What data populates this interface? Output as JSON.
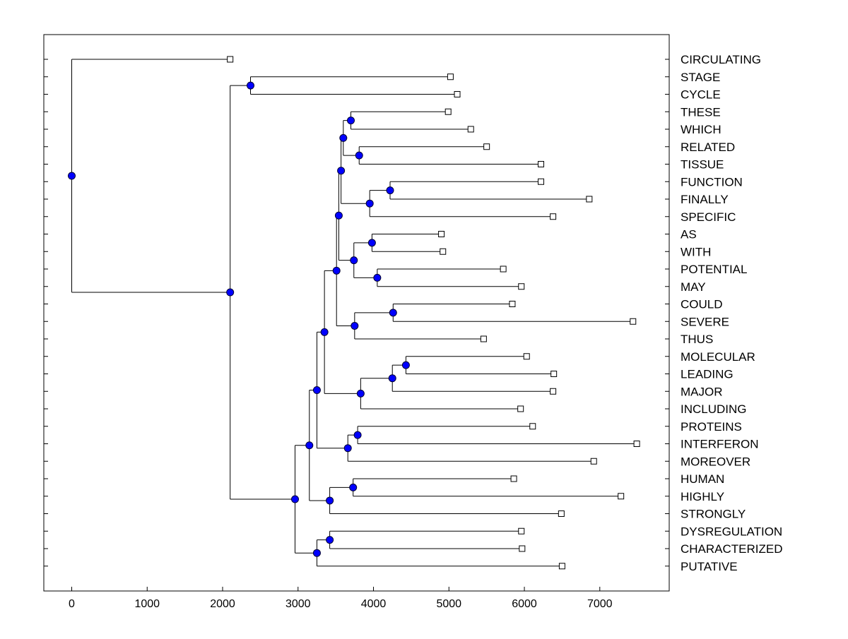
{
  "chart_data": {
    "type": "dendrogram",
    "xlim": [
      -370,
      7920
    ],
    "x_ticks": [
      0,
      1000,
      2000,
      3000,
      4000,
      5000,
      6000,
      7000
    ],
    "x_tick_labels": [
      "0",
      "1000",
      "2000",
      "3000",
      "4000",
      "5000",
      "6000",
      "7000"
    ],
    "title": "",
    "xlabel": "",
    "ylabel": "",
    "grid": false,
    "colors": {
      "node": "#0000ff",
      "line": "#000000",
      "leaf_marker": "#ffffff"
    },
    "leaves": [
      {
        "label": "CIRCULATING",
        "value": 2100
      },
      {
        "label": "STAGE",
        "value": 5020
      },
      {
        "label": "CYCLE",
        "value": 5110
      },
      {
        "label": "THESE",
        "value": 4990
      },
      {
        "label": "WHICH",
        "value": 5290
      },
      {
        "label": "RELATED",
        "value": 5500
      },
      {
        "label": "TISSUE",
        "value": 6220
      },
      {
        "label": "FUNCTION",
        "value": 6220
      },
      {
        "label": "FINALLY",
        "value": 6860
      },
      {
        "label": "SPECIFIC",
        "value": 6380
      },
      {
        "label": "AS",
        "value": 4900
      },
      {
        "label": "WITH",
        "value": 4920
      },
      {
        "label": "POTENTIAL",
        "value": 5720
      },
      {
        "label": "MAY",
        "value": 5960
      },
      {
        "label": "COULD",
        "value": 5840
      },
      {
        "label": "SEVERE",
        "value": 7440
      },
      {
        "label": "THUS",
        "value": 5460
      },
      {
        "label": "MOLECULAR",
        "value": 6030
      },
      {
        "label": "LEADING",
        "value": 6390
      },
      {
        "label": "MAJOR",
        "value": 6380
      },
      {
        "label": "INCLUDING",
        "value": 5950
      },
      {
        "label": "PROTEINS",
        "value": 6110
      },
      {
        "label": "INTERFERON",
        "value": 7490
      },
      {
        "label": "MOREOVER",
        "value": 6920
      },
      {
        "label": "HUMAN",
        "value": 5860
      },
      {
        "label": "HIGHLY",
        "value": 7280
      },
      {
        "label": "STRONGLY",
        "value": 6490
      },
      {
        "label": "DYSREGULATION",
        "value": 5960
      },
      {
        "label": "CHARACTERIZED",
        "value": 5970
      },
      {
        "label": "PUTATIVE",
        "value": 6500
      }
    ],
    "tree": {
      "h": 0,
      "c": [
        {
          "leaf": 0
        },
        {
          "h": 2100,
          "c": [
            {
              "h": 2370,
              "c": [
                {
                  "leaf": 1
                },
                {
                  "leaf": 2
                }
              ]
            },
            {
              "h": 2960,
              "c": [
                {
                  "h": 3150,
                  "c": [
                    {
                      "h": 3250,
                      "c": [
                        {
                          "h": 3350,
                          "c": [
                            {
                              "h": 3510,
                              "c": [
                                {
                                  "h": 3540,
                                  "c": [
                                    {
                                      "h": 3570,
                                      "c": [
                                        {
                                          "h": 3600,
                                          "c": [
                                            {
                                              "h": 3700,
                                              "c": [
                                                {
                                                  "leaf": 3
                                                },
                                                {
                                                  "leaf": 4
                                                }
                                              ]
                                            },
                                            {
                                              "h": 3810,
                                              "c": [
                                                {
                                                  "leaf": 5
                                                },
                                                {
                                                  "leaf": 6
                                                }
                                              ]
                                            }
                                          ]
                                        },
                                        {
                                          "h": 3950,
                                          "c": [
                                            {
                                              "h": 4220,
                                              "c": [
                                                {
                                                  "leaf": 7
                                                },
                                                {
                                                  "leaf": 8
                                                }
                                              ]
                                            },
                                            {
                                              "leaf": 9
                                            }
                                          ]
                                        }
                                      ]
                                    },
                                    {
                                      "h": 3740,
                                      "c": [
                                        {
                                          "h": 3980,
                                          "c": [
                                            {
                                              "leaf": 10
                                            },
                                            {
                                              "leaf": 11
                                            }
                                          ]
                                        },
                                        {
                                          "h": 4050,
                                          "c": [
                                            {
                                              "leaf": 12
                                            },
                                            {
                                              "leaf": 13
                                            }
                                          ]
                                        }
                                      ]
                                    }
                                  ]
                                },
                                {
                                  "h": 3750,
                                  "c": [
                                    {
                                      "h": 4260,
                                      "c": [
                                        {
                                          "leaf": 14
                                        },
                                        {
                                          "leaf": 15
                                        }
                                      ]
                                    },
                                    {
                                      "leaf": 16
                                    }
                                  ]
                                }
                              ]
                            },
                            {
                              "h": 3830,
                              "c": [
                                {
                                  "h": 4250,
                                  "c": [
                                    {
                                      "h": 4430,
                                      "c": [
                                        {
                                          "leaf": 17
                                        },
                                        {
                                          "leaf": 18
                                        }
                                      ]
                                    },
                                    {
                                      "leaf": 19
                                    }
                                  ]
                                },
                                {
                                  "leaf": 20
                                }
                              ]
                            }
                          ]
                        },
                        {
                          "h": 3660,
                          "c": [
                            {
                              "h": 3790,
                              "c": [
                                {
                                  "leaf": 21
                                },
                                {
                                  "leaf": 22
                                }
                              ]
                            },
                            {
                              "leaf": 23
                            }
                          ]
                        }
                      ]
                    },
                    {
                      "h": 3420,
                      "c": [
                        {
                          "h": 3730,
                          "c": [
                            {
                              "leaf": 24
                            },
                            {
                              "leaf": 25
                            }
                          ]
                        },
                        {
                          "leaf": 26
                        }
                      ]
                    }
                  ]
                },
                {
                  "h": 3250,
                  "c": [
                    {
                      "h": 3420,
                      "c": [
                        {
                          "leaf": 27
                        },
                        {
                          "leaf": 28
                        }
                      ]
                    },
                    {
                      "leaf": 29
                    }
                  ]
                }
              ]
            }
          ]
        }
      ]
    }
  }
}
